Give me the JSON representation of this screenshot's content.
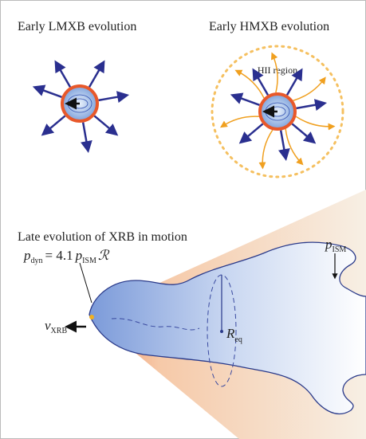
{
  "panels": [
    {
      "title": "Early LMXB evolution"
    },
    {
      "title": "Early HMXB evolution",
      "region_label": "HII region"
    },
    {
      "title": "Late evolution of XRB in motion",
      "labels": {
        "ambient_pressure": {
          "symbol": "p",
          "subscript": "ISM"
        },
        "dynamic_pressure": {
          "symbol": "p",
          "subscript": "dyn",
          "equals": "= 4.1",
          "rhs_symbol": "p",
          "rhs_subscript": "ISM",
          "factor": "ℛ"
        },
        "velocity": {
          "symbol": "v",
          "subscript": "XRB"
        },
        "radius": {
          "symbol": "R",
          "subscript": "eq"
        }
      }
    }
  ]
}
